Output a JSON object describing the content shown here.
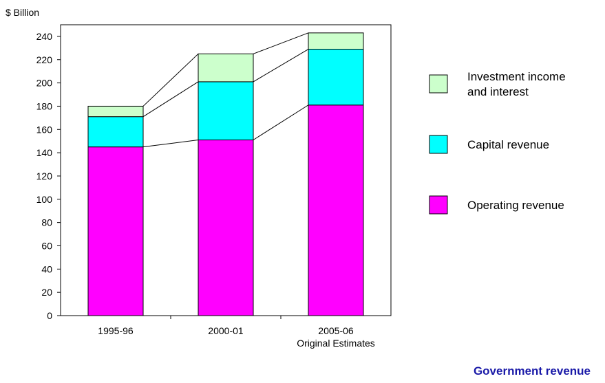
{
  "chart_data": {
    "type": "bar",
    "stacked": true,
    "ylabel": "$ Billion",
    "ylim": [
      0,
      250
    ],
    "yticks": [
      0,
      20,
      40,
      60,
      80,
      100,
      120,
      140,
      160,
      180,
      200,
      220,
      240
    ],
    "categories": [
      "1995-96",
      "2000-01",
      "2005-06"
    ],
    "category_sublabels": [
      "",
      "",
      "Original Estimates"
    ],
    "series": [
      {
        "name": "Operating revenue",
        "color": "#ff00ff",
        "values": [
          145,
          151,
          181
        ]
      },
      {
        "name": "Capital revenue",
        "color": "#00ffff",
        "values": [
          26,
          50,
          48
        ]
      },
      {
        "name": "Investment income and interest",
        "color": "#ccffcc",
        "values": [
          9,
          24,
          14
        ]
      }
    ],
    "legend": {
      "placement": "right",
      "items": [
        {
          "lines": [
            "Investment income",
            "and interest"
          ],
          "color": "#ccffcc"
        },
        {
          "lines": [
            "Capital revenue"
          ],
          "color": "#00ffff"
        },
        {
          "lines": [
            "Operating revenue"
          ],
          "color": "#ff00ff"
        }
      ]
    },
    "connector_lines": true,
    "grid": false
  },
  "footer_title": "Government revenue"
}
